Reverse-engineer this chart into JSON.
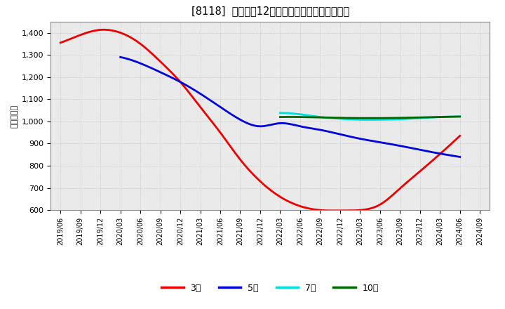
{
  "title": "[8118]  経常利益12か月移動合計の平均値の推移",
  "ylabel": "（百万円）",
  "ylim": [
    600,
    1450
  ],
  "yticks": [
    600,
    700,
    800,
    900,
    1000,
    1100,
    1200,
    1300,
    1400
  ],
  "background_color": "#ffffff",
  "plot_bg_color": "#eaeaea",
  "grid_color": "#aaaaaa",
  "series": {
    "3年": {
      "color": "#ee0000",
      "points": [
        [
          "2019/06",
          1355
        ],
        [
          "2019/09",
          1390
        ],
        [
          "2019/12",
          1413
        ],
        [
          "2020/03",
          1400
        ],
        [
          "2020/06",
          1350
        ],
        [
          "2020/09",
          1270
        ],
        [
          "2020/12",
          1178
        ],
        [
          "2021/03",
          1065
        ],
        [
          "2021/06",
          950
        ],
        [
          "2021/09",
          828
        ],
        [
          "2021/12",
          730
        ],
        [
          "2022/03",
          660
        ],
        [
          "2022/06",
          618
        ],
        [
          "2022/09",
          600
        ],
        [
          "2022/12",
          598
        ],
        [
          "2023/03",
          600
        ],
        [
          "2023/06",
          625
        ],
        [
          "2023/09",
          698
        ],
        [
          "2023/12",
          775
        ],
        [
          "2024/03",
          853
        ],
        [
          "2024/06",
          935
        ]
      ]
    },
    "5年": {
      "color": "#0000dd",
      "points": [
        [
          "2020/03",
          1290
        ],
        [
          "2020/06",
          1262
        ],
        [
          "2020/09",
          1222
        ],
        [
          "2020/12",
          1178
        ],
        [
          "2021/03",
          1125
        ],
        [
          "2021/06",
          1065
        ],
        [
          "2021/09",
          1008
        ],
        [
          "2021/12",
          978
        ],
        [
          "2022/03",
          992
        ],
        [
          "2022/06",
          978
        ],
        [
          "2022/09",
          962
        ],
        [
          "2022/12",
          942
        ],
        [
          "2023/03",
          922
        ],
        [
          "2023/06",
          906
        ],
        [
          "2023/09",
          890
        ],
        [
          "2023/12",
          872
        ],
        [
          "2024/03",
          855
        ],
        [
          "2024/06",
          840
        ]
      ]
    },
    "7年": {
      "color": "#00dddd",
      "points": [
        [
          "2022/03",
          1038
        ],
        [
          "2022/06",
          1032
        ],
        [
          "2022/09",
          1020
        ],
        [
          "2022/12",
          1012
        ],
        [
          "2023/03",
          1008
        ],
        [
          "2023/06",
          1008
        ],
        [
          "2023/09",
          1010
        ],
        [
          "2023/12",
          1015
        ],
        [
          "2024/03",
          1020
        ],
        [
          "2024/06",
          1022
        ]
      ]
    },
    "10年": {
      "color": "#006600",
      "points": [
        [
          "2022/03",
          1020
        ],
        [
          "2022/06",
          1020
        ],
        [
          "2022/09",
          1018
        ],
        [
          "2022/12",
          1016
        ],
        [
          "2023/03",
          1015
        ],
        [
          "2023/06",
          1015
        ],
        [
          "2023/09",
          1016
        ],
        [
          "2023/12",
          1018
        ],
        [
          "2024/03",
          1020
        ],
        [
          "2024/06",
          1022
        ]
      ]
    }
  },
  "legend_labels": [
    "3年",
    "5年",
    "7年",
    "10年"
  ],
  "legend_colors": [
    "#ee0000",
    "#0000dd",
    "#00dddd",
    "#006600"
  ],
  "xtick_labels": [
    "2019/06",
    "2019/09",
    "2019/12",
    "2020/03",
    "2020/06",
    "2020/09",
    "2020/12",
    "2021/03",
    "2021/06",
    "2021/09",
    "2021/12",
    "2022/03",
    "2022/06",
    "2022/09",
    "2022/12",
    "2023/03",
    "2023/06",
    "2023/09",
    "2023/12",
    "2024/03",
    "2024/06",
    "2024/09"
  ]
}
